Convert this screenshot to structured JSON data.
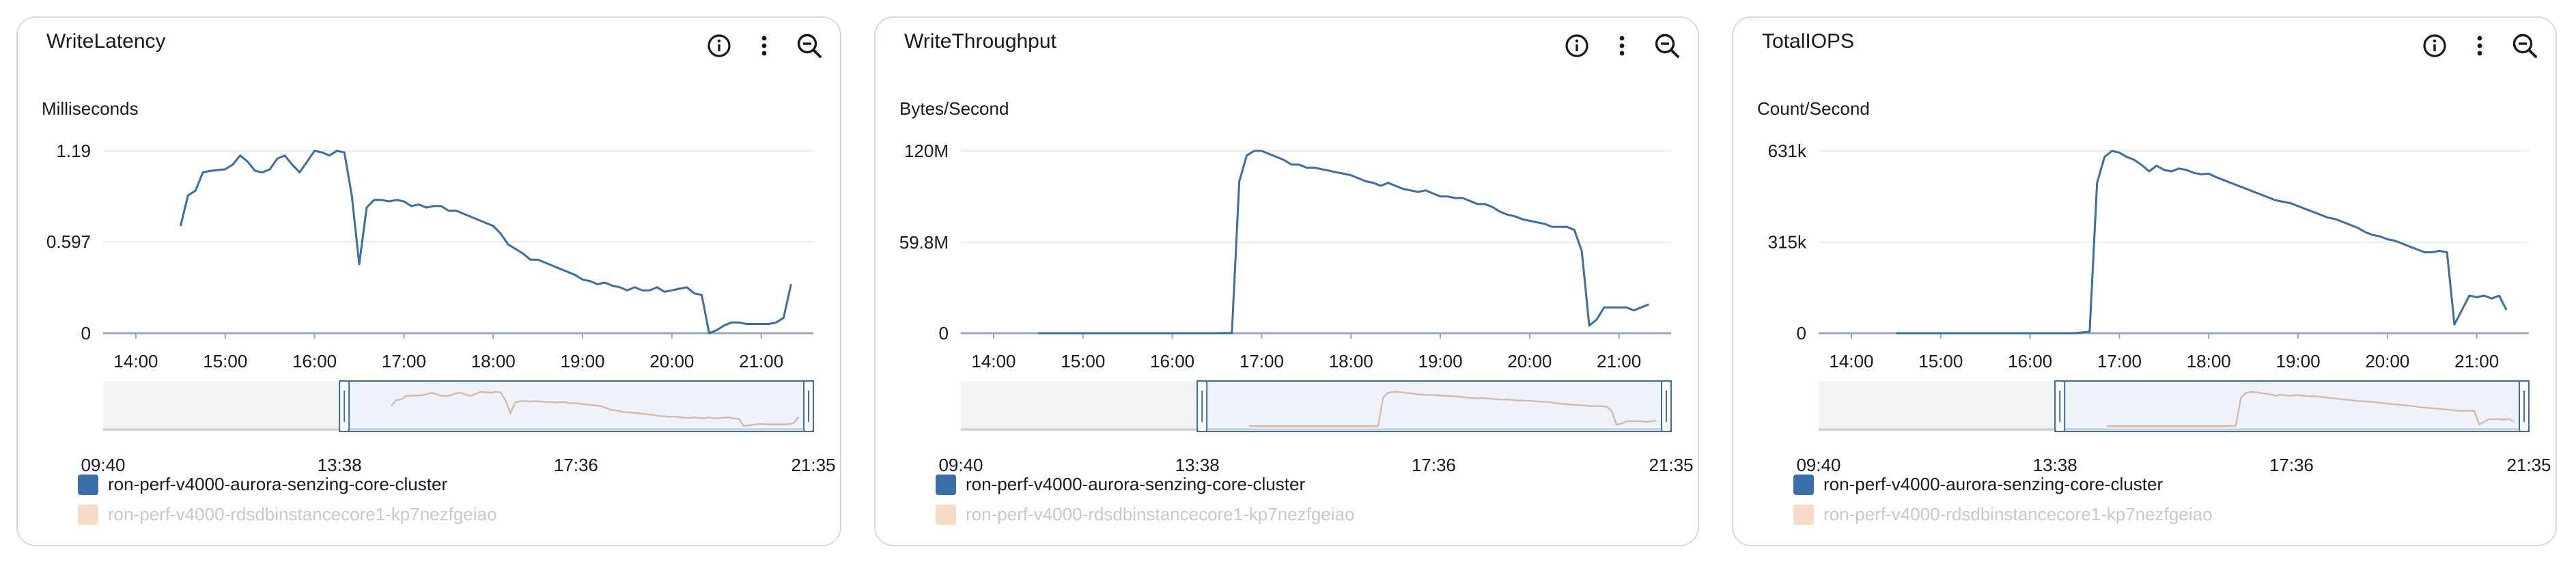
{
  "panels": [
    {
      "title": "WriteLatency",
      "unit": "Milliseconds",
      "icons": [
        "info-icon",
        "more-vertical-icon",
        "zoom-out-icon"
      ],
      "legend": [
        {
          "label": "ron-perf-v4000-aurora-senzing-core-cluster",
          "color": "#3a6ea8",
          "dimmed": false
        },
        {
          "label": "ron-perf-v4000-rdsdbinstancecore1-kp7nezfgeiao",
          "color": "#f8dcc6",
          "dimmed": true
        }
      ]
    },
    {
      "title": "WriteThroughput",
      "unit": "Bytes/Second",
      "icons": [
        "info-icon",
        "more-vertical-icon",
        "zoom-out-icon"
      ],
      "legend": [
        {
          "label": "ron-perf-v4000-aurora-senzing-core-cluster",
          "color": "#3a6ea8",
          "dimmed": false
        },
        {
          "label": "ron-perf-v4000-rdsdbinstancecore1-kp7nezfgeiao",
          "color": "#f8dcc6",
          "dimmed": true
        }
      ]
    },
    {
      "title": "TotalIOPS",
      "unit": "Count/Second",
      "icons": [
        "info-icon",
        "more-vertical-icon",
        "zoom-out-icon"
      ],
      "legend": [
        {
          "label": "ron-perf-v4000-aurora-senzing-core-cluster",
          "color": "#3a6ea8",
          "dimmed": false
        },
        {
          "label": "ron-perf-v4000-rdsdbinstancecore1-kp7nezfgeiao",
          "color": "#f8dcc6",
          "dimmed": true
        }
      ]
    }
  ],
  "chart_data": [
    {
      "type": "line",
      "title": "WriteLatency",
      "ylabel": "Milliseconds",
      "ylim": [
        0,
        1.19
      ],
      "y_ticks": [
        {
          "value": 0,
          "label": "0"
        },
        {
          "value": 0.597,
          "label": "0.597"
        },
        {
          "value": 1.19,
          "label": "1.19"
        }
      ],
      "xlim": [
        "13:38",
        "21:35"
      ],
      "x_ticks": [
        "14:00",
        "15:00",
        "16:00",
        "17:00",
        "18:00",
        "19:00",
        "20:00",
        "21:00"
      ],
      "navigator_xlim": [
        "09:40",
        "21:35"
      ],
      "navigator_ticks": [
        "09:40",
        "13:38",
        "17:36",
        "21:35"
      ],
      "navigator_selection": [
        "13:38",
        "21:35"
      ],
      "grid": true,
      "series": [
        {
          "name": "ron-perf-v4000-aurora-senzing-core-cluster",
          "color": "#3a6ea8",
          "x": [
            "14:30",
            "14:35",
            "14:40",
            "14:45",
            "14:50",
            "15:00",
            "15:05",
            "15:10",
            "15:15",
            "15:20",
            "15:25",
            "15:30",
            "15:35",
            "15:40",
            "15:45",
            "15:50",
            "15:55",
            "16:00",
            "16:05",
            "16:10",
            "16:15",
            "16:20",
            "16:25",
            "16:30",
            "16:35",
            "16:40",
            "16:45",
            "16:50",
            "16:55",
            "17:00",
            "17:05",
            "17:10",
            "17:15",
            "17:20",
            "17:25",
            "17:30",
            "17:35",
            "17:40",
            "17:45",
            "17:50",
            "17:55",
            "18:00",
            "18:05",
            "18:10",
            "18:15",
            "18:20",
            "18:25",
            "18:30",
            "18:35",
            "18:40",
            "18:45",
            "18:50",
            "18:55",
            "19:00",
            "19:05",
            "19:10",
            "19:15",
            "19:20",
            "19:25",
            "19:30",
            "19:35",
            "19:40",
            "19:45",
            "19:50",
            "19:55",
            "20:00",
            "20:05",
            "20:10",
            "20:15",
            "20:20",
            "20:25",
            "20:30",
            "20:35",
            "20:40",
            "20:45",
            "20:50",
            "20:55",
            "21:00",
            "21:05",
            "21:10",
            "21:15",
            "21:20"
          ],
          "y": [
            0.7,
            0.9,
            0.93,
            1.05,
            1.06,
            1.07,
            1.1,
            1.16,
            1.12,
            1.06,
            1.05,
            1.07,
            1.14,
            1.16,
            1.1,
            1.05,
            1.12,
            1.19,
            1.18,
            1.16,
            1.19,
            1.18,
            0.9,
            0.45,
            0.82,
            0.87,
            0.87,
            0.86,
            0.87,
            0.86,
            0.83,
            0.84,
            0.82,
            0.83,
            0.83,
            0.8,
            0.8,
            0.78,
            0.76,
            0.74,
            0.72,
            0.7,
            0.65,
            0.58,
            0.55,
            0.52,
            0.48,
            0.48,
            0.46,
            0.44,
            0.42,
            0.4,
            0.38,
            0.35,
            0.34,
            0.32,
            0.33,
            0.31,
            0.3,
            0.28,
            0.3,
            0.28,
            0.28,
            0.3,
            0.27,
            0.28,
            0.29,
            0.3,
            0.26,
            0.25,
            0.0,
            0.02,
            0.05,
            0.07,
            0.07,
            0.06,
            0.06,
            0.06,
            0.06,
            0.07,
            0.1,
            0.32
          ]
        }
      ]
    },
    {
      "type": "line",
      "title": "WriteThroughput",
      "ylabel": "Bytes/Second",
      "ylim": [
        0,
        120
      ],
      "y_unit": "M",
      "y_ticks": [
        {
          "value": 0,
          "label": "0"
        },
        {
          "value": 59.8,
          "label": "59.8M"
        },
        {
          "value": 120,
          "label": "120M"
        }
      ],
      "xlim": [
        "13:38",
        "21:35"
      ],
      "x_ticks": [
        "14:00",
        "15:00",
        "16:00",
        "17:00",
        "18:00",
        "19:00",
        "20:00",
        "21:00"
      ],
      "navigator_xlim": [
        "09:40",
        "21:35"
      ],
      "navigator_ticks": [
        "09:40",
        "13:38",
        "17:36",
        "21:35"
      ],
      "navigator_selection": [
        "13:38",
        "21:35"
      ],
      "grid": true,
      "series": [
        {
          "name": "ron-perf-v4000-aurora-senzing-core-cluster",
          "color": "#3a6ea8",
          "x": [
            "14:30",
            "15:00",
            "15:30",
            "16:00",
            "16:30",
            "16:40",
            "16:45",
            "16:50",
            "16:55",
            "17:00",
            "17:05",
            "17:10",
            "17:15",
            "17:20",
            "17:25",
            "17:30",
            "17:35",
            "17:40",
            "17:45",
            "17:50",
            "17:55",
            "18:00",
            "18:05",
            "18:10",
            "18:15",
            "18:20",
            "18:25",
            "18:30",
            "18:35",
            "18:40",
            "18:45",
            "18:50",
            "18:55",
            "19:00",
            "19:05",
            "19:10",
            "19:15",
            "19:20",
            "19:25",
            "19:30",
            "19:35",
            "19:40",
            "19:45",
            "19:50",
            "19:55",
            "20:00",
            "20:05",
            "20:10",
            "20:15",
            "20:20",
            "20:25",
            "20:30",
            "20:35",
            "20:40",
            "20:45",
            "20:50",
            "20:55",
            "21:00",
            "21:05",
            "21:10",
            "21:15",
            "21:20"
          ],
          "y": [
            0,
            0,
            0,
            0,
            0,
            0.2,
            100,
            117,
            120,
            120,
            118,
            116,
            114,
            111,
            111,
            109,
            109,
            108,
            107,
            106,
            105,
            104,
            102,
            100,
            99,
            97,
            99,
            97,
            95,
            94,
            93,
            94,
            92,
            90,
            90,
            89,
            89,
            87,
            85,
            85,
            83,
            80,
            78,
            77,
            75,
            74,
            73,
            72,
            70,
            70,
            70,
            68,
            54,
            5,
            9,
            17,
            17,
            17,
            17,
            15,
            17,
            19
          ]
        }
      ]
    },
    {
      "type": "line",
      "title": "TotalIOPS",
      "ylabel": "Count/Second",
      "ylim": [
        0,
        631
      ],
      "y_unit": "k",
      "y_ticks": [
        {
          "value": 0,
          "label": "0"
        },
        {
          "value": 315,
          "label": "315k"
        },
        {
          "value": 631,
          "label": "631k"
        }
      ],
      "xlim": [
        "13:38",
        "21:35"
      ],
      "x_ticks": [
        "14:00",
        "15:00",
        "16:00",
        "17:00",
        "18:00",
        "19:00",
        "20:00",
        "21:00"
      ],
      "navigator_xlim": [
        "09:40",
        "21:35"
      ],
      "navigator_ticks": [
        "09:40",
        "13:38",
        "17:36",
        "21:35"
      ],
      "navigator_selection": [
        "13:38",
        "21:35"
      ],
      "grid": true,
      "series": [
        {
          "name": "ron-perf-v4000-aurora-senzing-core-cluster",
          "color": "#3a6ea8",
          "x": [
            "14:30",
            "15:00",
            "15:30",
            "16:00",
            "16:30",
            "16:40",
            "16:45",
            "16:50",
            "16:55",
            "17:00",
            "17:05",
            "17:10",
            "17:15",
            "17:20",
            "17:25",
            "17:30",
            "17:35",
            "17:40",
            "17:45",
            "17:50",
            "17:55",
            "18:00",
            "18:05",
            "18:10",
            "18:15",
            "18:20",
            "18:25",
            "18:30",
            "18:35",
            "18:40",
            "18:45",
            "18:50",
            "18:55",
            "19:00",
            "19:05",
            "19:10",
            "19:15",
            "19:20",
            "19:25",
            "19:30",
            "19:35",
            "19:40",
            "19:45",
            "19:50",
            "19:55",
            "20:00",
            "20:05",
            "20:10",
            "20:15",
            "20:20",
            "20:25",
            "20:30",
            "20:35",
            "20:40",
            "20:45",
            "20:50",
            "20:55",
            "21:00",
            "21:05",
            "21:10",
            "21:15",
            "21:20"
          ],
          "y": [
            0,
            0,
            0,
            0,
            0,
            5,
            520,
            610,
            631,
            625,
            610,
            600,
            582,
            560,
            580,
            565,
            560,
            570,
            565,
            555,
            550,
            552,
            540,
            530,
            520,
            510,
            500,
            490,
            480,
            470,
            460,
            455,
            450,
            440,
            430,
            420,
            410,
            400,
            395,
            385,
            375,
            365,
            350,
            340,
            335,
            325,
            320,
            310,
            300,
            290,
            280,
            280,
            285,
            280,
            30,
            80,
            130,
            125,
            130,
            120,
            130,
            80
          ]
        }
      ]
    }
  ]
}
